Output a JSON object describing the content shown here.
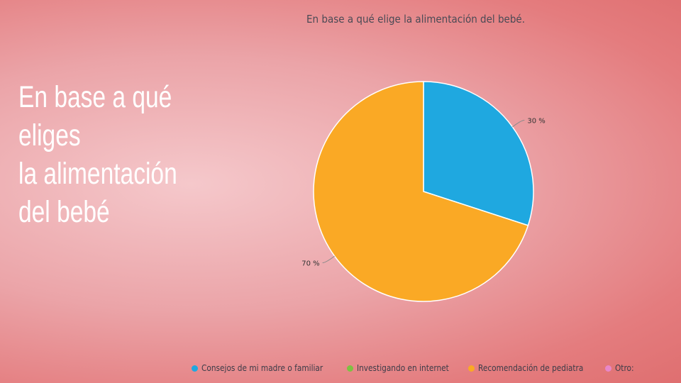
{
  "slide": {
    "title_lines": [
      "En base a qué",
      "eliges",
      "la alimentación",
      "del bebé"
    ]
  },
  "chart_data": {
    "type": "pie",
    "title": "En base a qué elige la alimentación del bebé.",
    "categories": [
      "Consejos de mi madre o familiar",
      "Investigando en internet",
      "Recomendación de pediatra",
      "Otro:"
    ],
    "values": [
      30,
      0,
      70,
      0
    ],
    "data_labels": [
      "30 %",
      "",
      "70 %",
      ""
    ],
    "colors": [
      "#1fa8e0",
      "#7dc142",
      "#faa925",
      "#e887c9"
    ],
    "legend_position": "bottom",
    "start_angle": "top, clockwise"
  }
}
